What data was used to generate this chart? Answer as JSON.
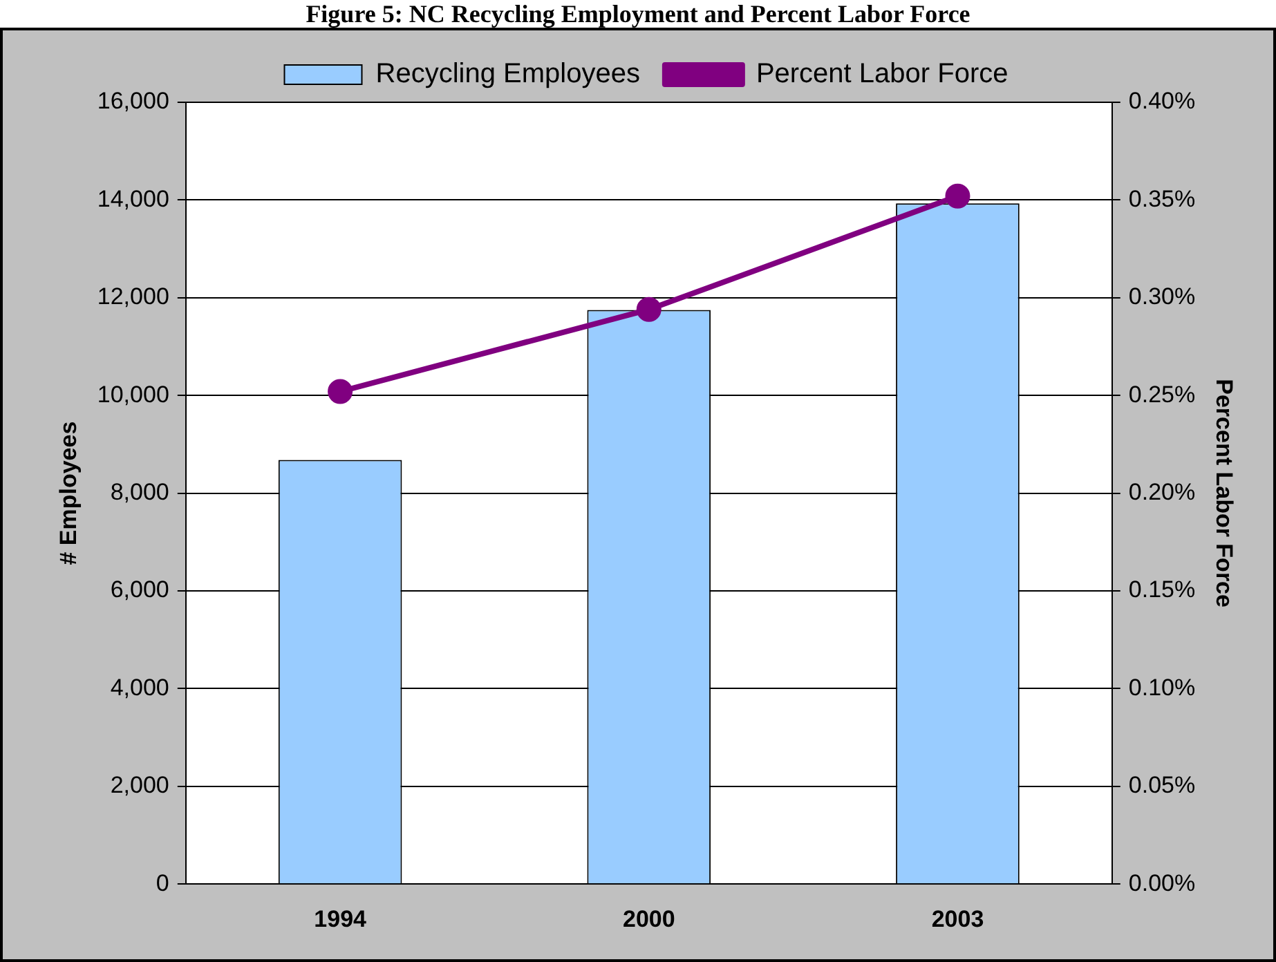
{
  "chart_data": {
    "type": "bar",
    "title": "Figure 5: NC Recycling Employment and Percent Labor Force",
    "ylabel": "# Employees",
    "y2label": "Percent Labor Force",
    "categories": [
      "1994",
      "2000",
      "2003"
    ],
    "series": [
      {
        "name": "Recycling Employees",
        "color": "#99ccff",
        "values": [
          8680,
          11750,
          13930
        ]
      },
      {
        "name": "Percent Labor Force",
        "type": "line",
        "axis": "y2",
        "color": "#800080",
        "values": [
          0.252,
          0.294,
          0.352
        ]
      }
    ],
    "ylim": [
      0,
      16000
    ],
    "yticks": [
      0,
      {
        "value": 2000,
        "label": "2,000"
      },
      {
        "value": 4000,
        "label": "4,000"
      },
      {
        "value": 6000,
        "label": "6,000"
      },
      {
        "value": 8000,
        "label": "8,000"
      },
      {
        "value": 10000,
        "label": "10,000"
      },
      {
        "value": 12000,
        "label": "12,000"
      },
      {
        "value": 14000,
        "label": "14,000"
      },
      {
        "value": 16000,
        "label": "16,000"
      }
    ],
    "y2lim": [
      0,
      0.4
    ],
    "y2ticks": [
      {
        "value": 0,
        "label": "0.00%"
      },
      {
        "value": 0.05,
        "label": "0.05%"
      },
      {
        "value": 0.1,
        "label": "0.10%"
      },
      {
        "value": 0.15,
        "label": "0.15%"
      },
      {
        "value": 0.2,
        "label": "0.20%"
      },
      {
        "value": 0.25,
        "label": "0.25%"
      },
      {
        "value": 0.3,
        "label": "0.30%"
      },
      {
        "value": 0.35,
        "label": "0.35%"
      },
      {
        "value": 0.4,
        "label": "0.40%"
      }
    ],
    "grid": "y",
    "legend": "top",
    "marker": "circle",
    "line_style": "solid"
  }
}
